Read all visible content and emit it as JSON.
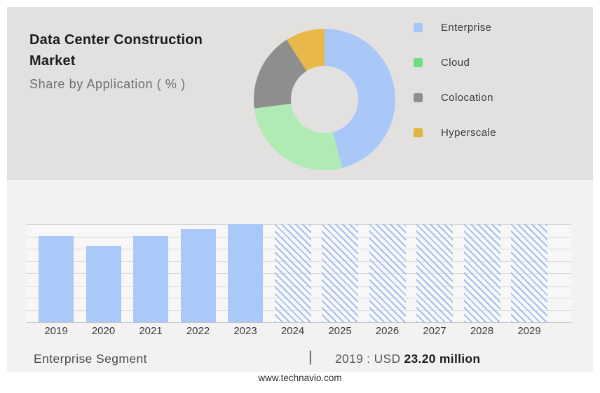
{
  "header": {
    "title": "Data Center Construction Market",
    "subtitle": "Share by Application ( % )"
  },
  "legend": {
    "position": "right",
    "items": [
      {
        "label": "Enterprise",
        "color": "#a4c6f9"
      },
      {
        "label": "Cloud",
        "color": "#6ede82"
      },
      {
        "label": "Colocation",
        "color": "#8f8f8f"
      },
      {
        "label": "Hyperscale",
        "color": "#dfb63f"
      }
    ]
  },
  "footer": {
    "segment_label": "Enterprise Segment",
    "separator": "|",
    "stat_prefix": "2019 : USD",
    "stat_value": "23.20 million"
  },
  "watermark": "www.technavio.com",
  "colors": {
    "frame_bg": "#ffffff",
    "panel_top_bg": "#e2e1e0",
    "panel_bottom_bg": "#f2f2f3",
    "plot_bg": "#f7f7f8",
    "gridline": "#d7d7d7",
    "baseline": "#c3c3c3",
    "bar_blue": "#aac8f8",
    "hatch_blue": "#a0c0f0"
  },
  "chart_data": [
    {
      "type": "pie",
      "variant": "donut",
      "title": "Data Center Construction Market — Share by Application ( % )",
      "start_angle_deg": 0,
      "direction": "clockwise",
      "hole_ratio": 0.48,
      "legend_position": "right",
      "slices": [
        {
          "label": "Enterprise",
          "value_pct": 46,
          "color": "#a9c8f8"
        },
        {
          "label": "Cloud",
          "value_pct": 27,
          "color": "#b0ebb3"
        },
        {
          "label": "Colocation",
          "value_pct": 18,
          "color": "#8e8e8e"
        },
        {
          "label": "Hyperscale",
          "value_pct": 9,
          "color": "#e8b84b"
        }
      ]
    },
    {
      "type": "bar",
      "title": "Enterprise Segment",
      "categories": [
        "2019",
        "2020",
        "2021",
        "2022",
        "2023",
        "2024",
        "2025",
        "2026",
        "2027",
        "2028",
        "2029"
      ],
      "series": [
        {
          "name": "Enterprise segment size (USD million; only 2019 labeled, others estimated from bar heights)",
          "values": [
            23.2,
            20.6,
            23.2,
            25.1,
            26.4,
            null,
            null,
            null,
            null,
            null,
            null
          ]
        }
      ],
      "bar_height_fractions": [
        0.88,
        0.78,
        0.88,
        0.95,
        1.0,
        1.0,
        1.0,
        1.0,
        1.0,
        1.0,
        1.0
      ],
      "forecast_categories": [
        "2024",
        "2025",
        "2026",
        "2027",
        "2028",
        "2029"
      ],
      "forecast_style": "hatched-full-height",
      "bar_color": "#aac8f8",
      "hatch_color": "#a0c0f0",
      "grid": true,
      "gridline_count": 9,
      "xlabel": "",
      "ylabel": "",
      "annotation": "2019 : USD 23.20 million"
    }
  ]
}
